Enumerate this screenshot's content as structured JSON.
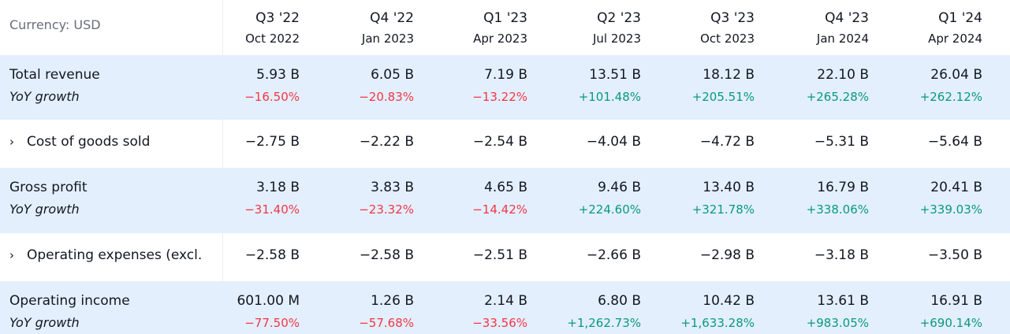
{
  "currency_label": "Currency: USD",
  "columns": [
    {
      "quarter": "Q3 '22",
      "date": "Oct 2022"
    },
    {
      "quarter": "Q4 '22",
      "date": "Jan 2023"
    },
    {
      "quarter": "Q1 '23",
      "date": "Apr 2023"
    },
    {
      "quarter": "Q2 '23",
      "date": "Jul 2023"
    },
    {
      "quarter": "Q3 '23",
      "date": "Oct 2023"
    },
    {
      "quarter": "Q4 '23",
      "date": "Jan 2024"
    },
    {
      "quarter": "Q1 '24",
      "date": "Apr 2024"
    }
  ],
  "rows": [
    {
      "label": "Total revenue",
      "sub_label": "YoY growth",
      "expandable": false,
      "values": [
        "5.93 B",
        "6.05 B",
        "7.19 B",
        "13.51 B",
        "18.12 B",
        "22.10 B",
        "26.04 B"
      ],
      "growth": [
        "−16.50%",
        "−20.83%",
        "−13.22%",
        "+101.48%",
        "+205.51%",
        "+265.28%",
        "+262.12%"
      ]
    },
    {
      "label": "Cost of goods sold",
      "expandable": true,
      "values": [
        "−2.75 B",
        "−2.22 B",
        "−2.54 B",
        "−4.04 B",
        "−4.72 B",
        "−5.31 B",
        "−5.64 B"
      ]
    },
    {
      "label": "Gross profit",
      "sub_label": "YoY growth",
      "expandable": false,
      "values": [
        "3.18 B",
        "3.83 B",
        "4.65 B",
        "9.46 B",
        "13.40 B",
        "16.79 B",
        "20.41 B"
      ],
      "growth": [
        "−31.40%",
        "−23.32%",
        "−14.42%",
        "+224.60%",
        "+321.78%",
        "+338.06%",
        "+339.03%"
      ]
    },
    {
      "label": "Operating expenses (excl.",
      "expandable": true,
      "values": [
        "−2.58 B",
        "−2.58 B",
        "−2.51 B",
        "−2.66 B",
        "−2.98 B",
        "−3.18 B",
        "−3.50 B"
      ]
    },
    {
      "label": "Operating income",
      "sub_label": "YoY growth",
      "expandable": false,
      "values": [
        "601.00 M",
        "1.26 B",
        "2.14 B",
        "6.80 B",
        "10.42 B",
        "13.61 B",
        "16.91 B"
      ],
      "growth": [
        "−77.50%",
        "−57.68%",
        "−33.56%",
        "+1,262.73%",
        "+1,633.28%",
        "+983.05%",
        "+690.14%"
      ]
    }
  ],
  "colors": {
    "negative": "#f23645",
    "positive": "#089981",
    "row_shade": "#e3effd"
  },
  "icons": {
    "expand": "chevron-right-icon"
  }
}
